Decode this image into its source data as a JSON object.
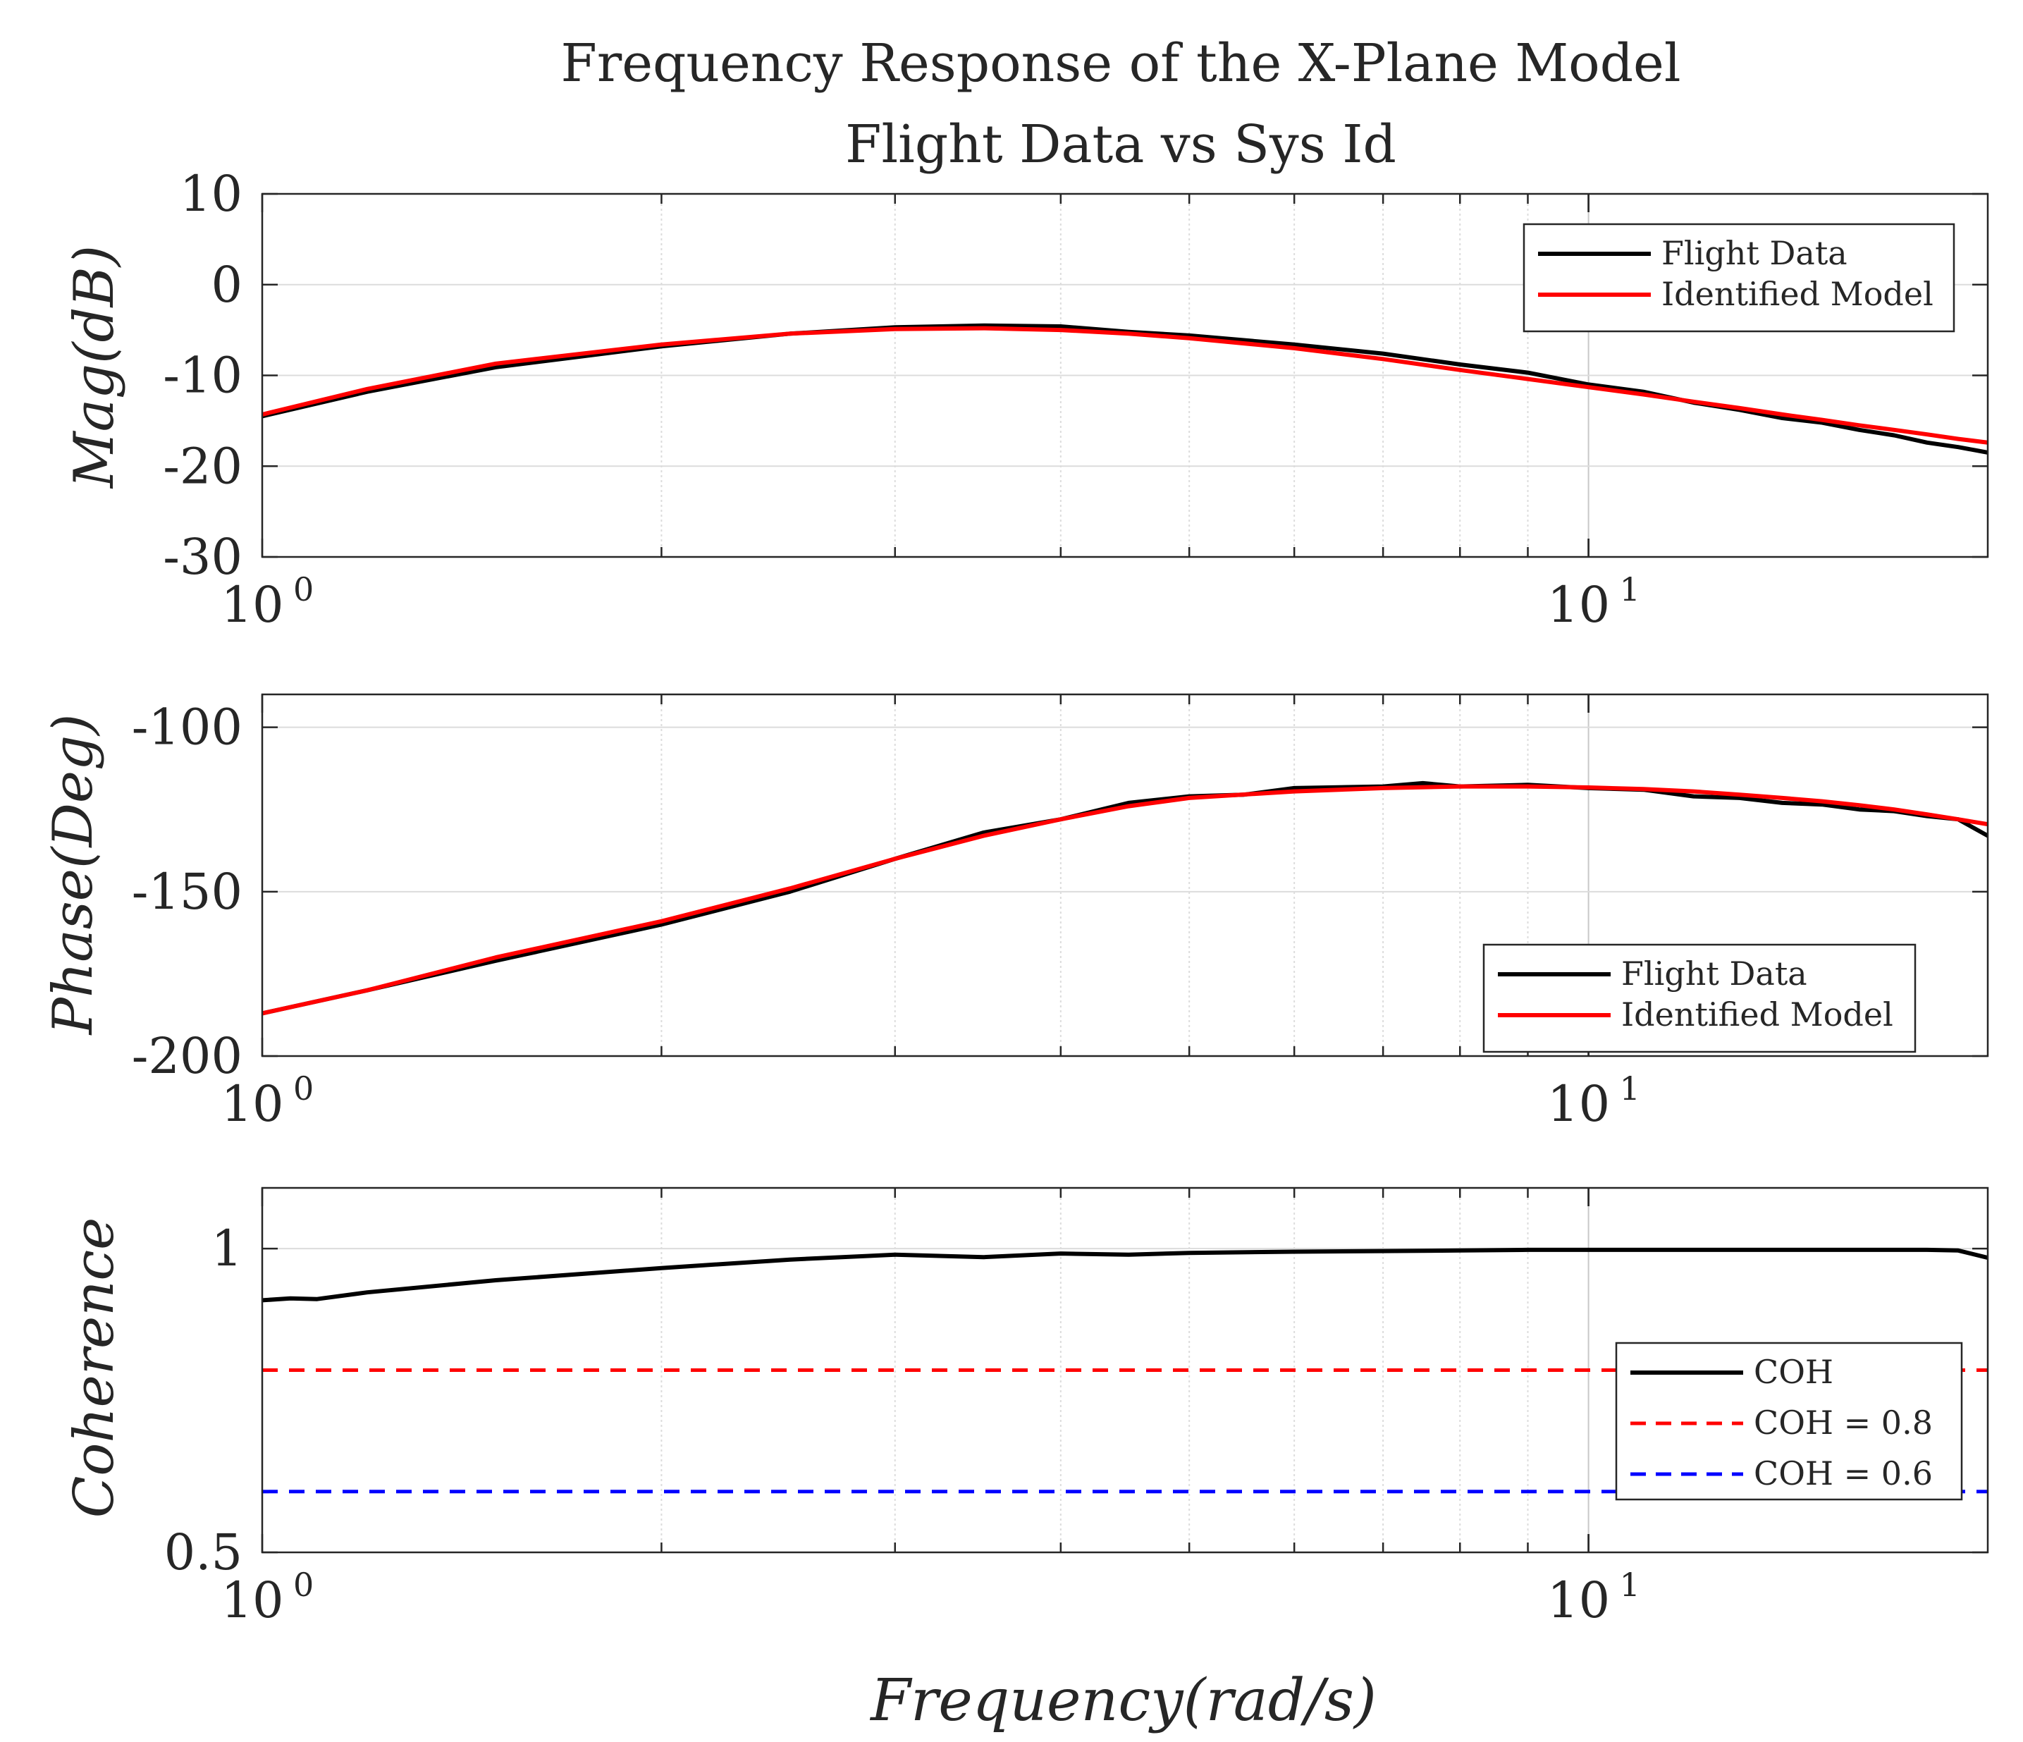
{
  "figure": {
    "title_line1": "Frequency Response of the X-Plane Model",
    "title_line2": "Flight Data vs Sys Id",
    "xlabel": "Frequency(rad/s)"
  },
  "colors": {
    "flight": "#000000",
    "model": "#ff0000",
    "coh": "#000000",
    "coh_08": "#ff0000",
    "coh_06": "#0000ff",
    "grid": "#dcdcdc",
    "axis": "#262626"
  },
  "chart_data": [
    {
      "type": "line",
      "id": "magnitude",
      "ylabel": "Mag(dB)",
      "xscale": "log",
      "xlim": [
        1,
        20
      ],
      "ylim": [
        -30,
        10
      ],
      "yticks": [
        -30,
        -20,
        -10,
        0,
        10
      ],
      "ytick_labels": [
        "-30",
        "-20",
        "-10",
        "0",
        "10"
      ],
      "xtick_labels": [
        {
          "base": "10",
          "exp": "0"
        },
        {
          "base": "10",
          "exp": "1"
        }
      ],
      "grid": true,
      "legend_position": "top-right",
      "series": [
        {
          "name": "Flight Data",
          "color": "#000000",
          "x": [
            1,
            1.2,
            1.5,
            2,
            2.5,
            3,
            3.5,
            4,
            4.5,
            5,
            6,
            7,
            8,
            9,
            10,
            11,
            12,
            13,
            14,
            15,
            16,
            17,
            18,
            19,
            20
          ],
          "values": [
            -14.5,
            -11.8,
            -9.1,
            -6.8,
            -5.4,
            -4.7,
            -4.5,
            -4.6,
            -5.2,
            -5.6,
            -6.6,
            -7.6,
            -8.8,
            -9.7,
            -11.0,
            -11.8,
            -13.0,
            -13.8,
            -14.7,
            -15.2,
            -16.0,
            -16.6,
            -17.4,
            -17.9,
            -18.5
          ]
        },
        {
          "name": "Identified Model",
          "color": "#ff0000",
          "x": [
            1,
            1.2,
            1.5,
            2,
            2.5,
            3,
            3.5,
            4,
            4.5,
            5,
            6,
            7,
            8,
            9,
            10,
            11,
            12,
            13,
            14,
            15,
            16,
            17,
            18,
            19,
            20
          ],
          "values": [
            -14.3,
            -11.5,
            -8.7,
            -6.6,
            -5.4,
            -4.9,
            -4.8,
            -5.0,
            -5.4,
            -5.9,
            -7.0,
            -8.2,
            -9.4,
            -10.4,
            -11.3,
            -12.1,
            -12.9,
            -13.6,
            -14.3,
            -14.9,
            -15.5,
            -16.0,
            -16.5,
            -17.0,
            -17.4
          ]
        }
      ],
      "legend": [
        "Flight Data",
        "Identified Model"
      ]
    },
    {
      "type": "line",
      "id": "phase",
      "ylabel": "Phase(Deg)",
      "xscale": "log",
      "xlim": [
        1,
        20
      ],
      "ylim": [
        -200,
        -90
      ],
      "yticks": [
        -200,
        -150,
        -100
      ],
      "ytick_labels": [
        "-200",
        "-150",
        "-100"
      ],
      "xtick_labels": [
        {
          "base": "10",
          "exp": "0"
        },
        {
          "base": "10",
          "exp": "1"
        }
      ],
      "grid": true,
      "legend_position": "bottom-right",
      "series": [
        {
          "name": "Flight Data",
          "color": "#000000",
          "x": [
            1,
            1.2,
            1.5,
            2,
            2.5,
            3,
            3.5,
            4,
            4.5,
            5,
            5.5,
            6,
            7,
            7.5,
            8,
            9,
            10,
            11,
            12,
            13,
            14,
            15,
            16,
            17,
            18,
            19,
            20
          ],
          "values": [
            -187,
            -180,
            -171,
            -160,
            -150,
            -140,
            -132,
            -128,
            -123,
            -121,
            -120.5,
            -118.5,
            -118,
            -117,
            -118,
            -117.5,
            -118.5,
            -119,
            -121,
            -121.5,
            -123,
            -123.5,
            -125,
            -125.5,
            -127,
            -128,
            -133
          ]
        },
        {
          "name": "Identified Model",
          "color": "#ff0000",
          "x": [
            1,
            1.2,
            1.5,
            2,
            2.5,
            3,
            3.5,
            4,
            4.5,
            5,
            6,
            7,
            8,
            9,
            10,
            11,
            12,
            13,
            14,
            15,
            16,
            17,
            18,
            19,
            20
          ],
          "values": [
            -187,
            -180,
            -170,
            -159,
            -149,
            -140,
            -133,
            -128,
            -124,
            -121.5,
            -119.5,
            -118.5,
            -118,
            -118,
            -118.3,
            -118.8,
            -119.5,
            -120.5,
            -121.5,
            -122.5,
            -123.7,
            -125,
            -126.5,
            -128,
            -129.5
          ]
        }
      ],
      "legend": [
        "Flight Data",
        "Identified Model"
      ]
    },
    {
      "type": "line",
      "id": "coherence",
      "ylabel": "Coherence",
      "xscale": "log",
      "xlim": [
        1,
        20
      ],
      "ylim": [
        0.5,
        1.1
      ],
      "yticks": [
        0.5,
        1
      ],
      "ytick_labels": [
        "0.5",
        "1"
      ],
      "xtick_labels": [
        {
          "base": "10",
          "exp": "0"
        },
        {
          "base": "10",
          "exp": "1"
        }
      ],
      "grid": true,
      "legend_position": "lower-right",
      "series": [
        {
          "name": "COH",
          "color": "#000000",
          "style": "solid",
          "x": [
            1,
            1.05,
            1.1,
            1.2,
            1.5,
            2,
            2.5,
            3,
            3.5,
            4,
            4.5,
            5,
            6,
            7,
            8,
            9,
            10,
            12,
            14,
            16,
            18,
            19,
            20
          ],
          "values": [
            0.915,
            0.918,
            0.917,
            0.928,
            0.948,
            0.968,
            0.982,
            0.99,
            0.986,
            0.992,
            0.99,
            0.993,
            0.995,
            0.996,
            0.997,
            0.998,
            0.998,
            0.998,
            0.998,
            0.998,
            0.998,
            0.997,
            0.985
          ]
        },
        {
          "name": "COH = 0.8",
          "color": "#ff0000",
          "style": "dashed",
          "x": [
            1,
            20
          ],
          "values": [
            0.8,
            0.8
          ]
        },
        {
          "name": "COH = 0.6",
          "color": "#0000ff",
          "style": "dashed",
          "x": [
            1,
            20
          ],
          "values": [
            0.6,
            0.6
          ]
        }
      ],
      "legend": [
        "COH",
        "COH = 0.8",
        "COH = 0.6"
      ]
    }
  ]
}
